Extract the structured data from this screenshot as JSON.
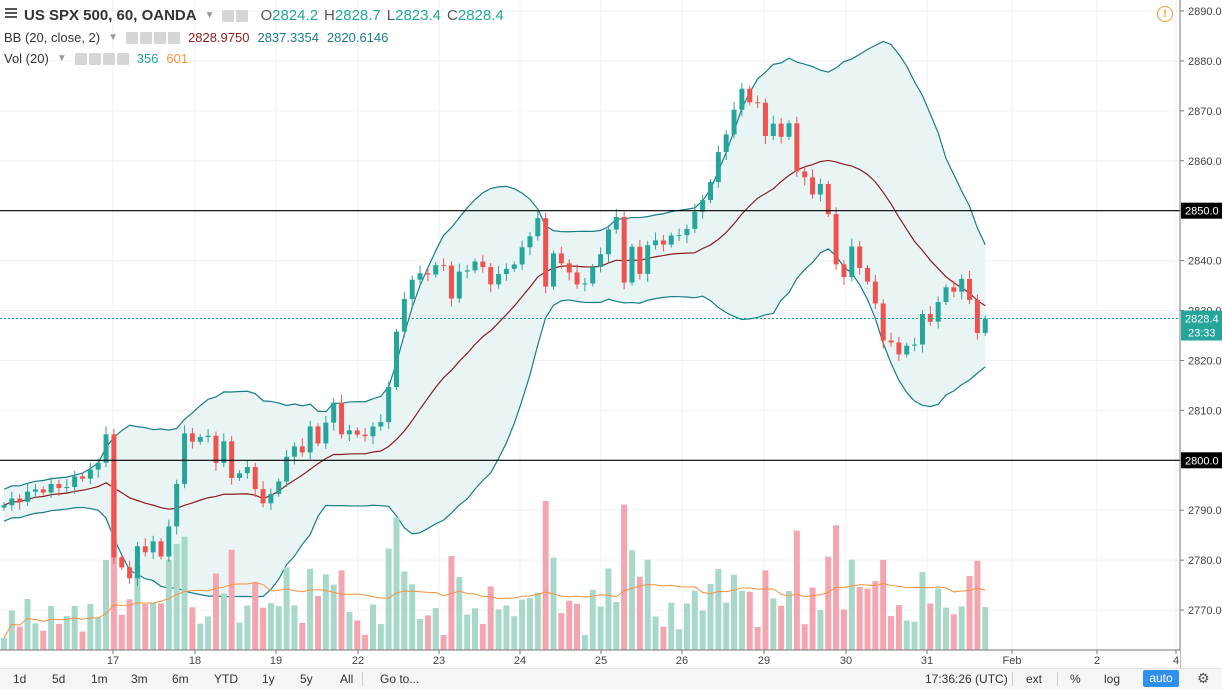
{
  "header": {
    "symbol": "US SPX 500, 60, OANDA",
    "ohlc": [
      {
        "key": "O",
        "value": "2824.2"
      },
      {
        "key": "H",
        "value": "2828.7"
      },
      {
        "key": "L",
        "value": "2823.4"
      },
      {
        "key": "C",
        "value": "2828.4"
      }
    ],
    "bb_label": "BB (20, close, 2)",
    "bb_values": [
      "2828.9750",
      "2837.3354",
      "2820.6146"
    ],
    "vol_label": "Vol (20)",
    "vol_values": [
      "356",
      "601"
    ]
  },
  "bottom_bar": {
    "timeframes": [
      "1d",
      "5d",
      "1m",
      "3m",
      "6m",
      "YTD",
      "1y",
      "5y",
      "All"
    ],
    "goto_label": "Go to...",
    "time": "17:36:26 (UTC)",
    "ext_label": "ext",
    "percent_label": "%",
    "log_label": "log",
    "auto_label": "auto"
  },
  "colors": {
    "up": "#26a69a",
    "down": "#ef5350",
    "band": "#1a7d8a",
    "basis": "#8b1c1c",
    "vol_up": "#a7d8c9",
    "vol_down": "#f4a6b0",
    "vol_ma": "#f7913e",
    "last_price": "#26a69a"
  },
  "chart_data": {
    "type": "candlestick",
    "x_ticks": [
      "17",
      "18",
      "19",
      "22",
      "23",
      "24",
      "25",
      "26",
      "29",
      "30",
      "31",
      "Feb",
      "2",
      "4"
    ],
    "y_ticks": [
      2770,
      2780,
      2790,
      2800,
      2810,
      2820,
      2830,
      2840,
      2850,
      2860,
      2870,
      2880,
      2890
    ],
    "y_range": [
      2762,
      2891
    ],
    "horizontal_lines": [
      2850.0,
      2800.0
    ],
    "horizontal_line_labels": [
      "2850.0",
      "2800.0"
    ],
    "last_price": 2828.4,
    "last_price_label": "2828.4",
    "countdown": "23:33",
    "close_path": [
      [
        0,
        2791
      ],
      [
        4,
        2794
      ],
      [
        8,
        2795
      ],
      [
        10,
        2797
      ],
      [
        12,
        2799
      ],
      [
        13,
        2806
      ],
      [
        14,
        2780
      ],
      [
        16,
        2777
      ],
      [
        17,
        2782
      ],
      [
        18,
        2782
      ],
      [
        19,
        2784
      ],
      [
        20,
        2780
      ],
      [
        22,
        2795
      ],
      [
        23,
        2805
      ],
      [
        25,
        2804
      ],
      [
        26,
        2805
      ],
      [
        27,
        2800
      ],
      [
        28,
        2803
      ],
      [
        29,
        2797
      ],
      [
        31,
        2798
      ],
      [
        32,
        2795
      ],
      [
        33,
        2791
      ],
      [
        34,
        2793
      ],
      [
        36,
        2800
      ],
      [
        37,
        2803
      ],
      [
        38,
        2802
      ],
      [
        39,
        2806
      ],
      [
        40,
        2804
      ],
      [
        42,
        2811
      ],
      [
        43,
        2806
      ],
      [
        45,
        2805
      ],
      [
        47,
        2806
      ],
      [
        48,
        2808
      ],
      [
        49,
        2815
      ],
      [
        50,
        2825
      ],
      [
        51,
        2833
      ],
      [
        52,
        2836
      ],
      [
        54,
        2838
      ],
      [
        56,
        2839
      ],
      [
        57,
        2833
      ],
      [
        58,
        2837
      ],
      [
        60,
        2840
      ],
      [
        62,
        2836
      ],
      [
        64,
        2838
      ],
      [
        66,
        2842
      ],
      [
        67,
        2845
      ],
      [
        68,
        2849
      ],
      [
        69,
        2834
      ],
      [
        70,
        2842
      ],
      [
        72,
        2837
      ],
      [
        74,
        2835
      ],
      [
        76,
        2842
      ],
      [
        78,
        2849
      ],
      [
        79,
        2836
      ],
      [
        80,
        2842
      ],
      [
        81,
        2838
      ],
      [
        82,
        2843
      ],
      [
        84,
        2844
      ],
      [
        86,
        2845
      ],
      [
        88,
        2849
      ],
      [
        90,
        2856
      ],
      [
        92,
        2866
      ],
      [
        94,
        2874
      ],
      [
        96,
        2871
      ],
      [
        97,
        2865
      ],
      [
        98,
        2868
      ],
      [
        99,
        2864
      ],
      [
        100,
        2868
      ],
      [
        101,
        2858
      ],
      [
        103,
        2854
      ],
      [
        104,
        2855
      ],
      [
        105,
        2849
      ],
      [
        106,
        2840
      ],
      [
        107,
        2836
      ],
      [
        108,
        2843
      ],
      [
        109,
        2839
      ],
      [
        110,
        2835
      ],
      [
        111,
        2832
      ],
      [
        112,
        2824
      ],
      [
        114,
        2822
      ],
      [
        116,
        2823
      ],
      [
        117,
        2830
      ],
      [
        118,
        2827
      ],
      [
        119,
        2832
      ],
      [
        120,
        2835
      ],
      [
        121,
        2833
      ],
      [
        122,
        2837
      ],
      [
        123,
        2832
      ],
      [
        124,
        2825
      ],
      [
        125,
        2828.4
      ]
    ]
  }
}
